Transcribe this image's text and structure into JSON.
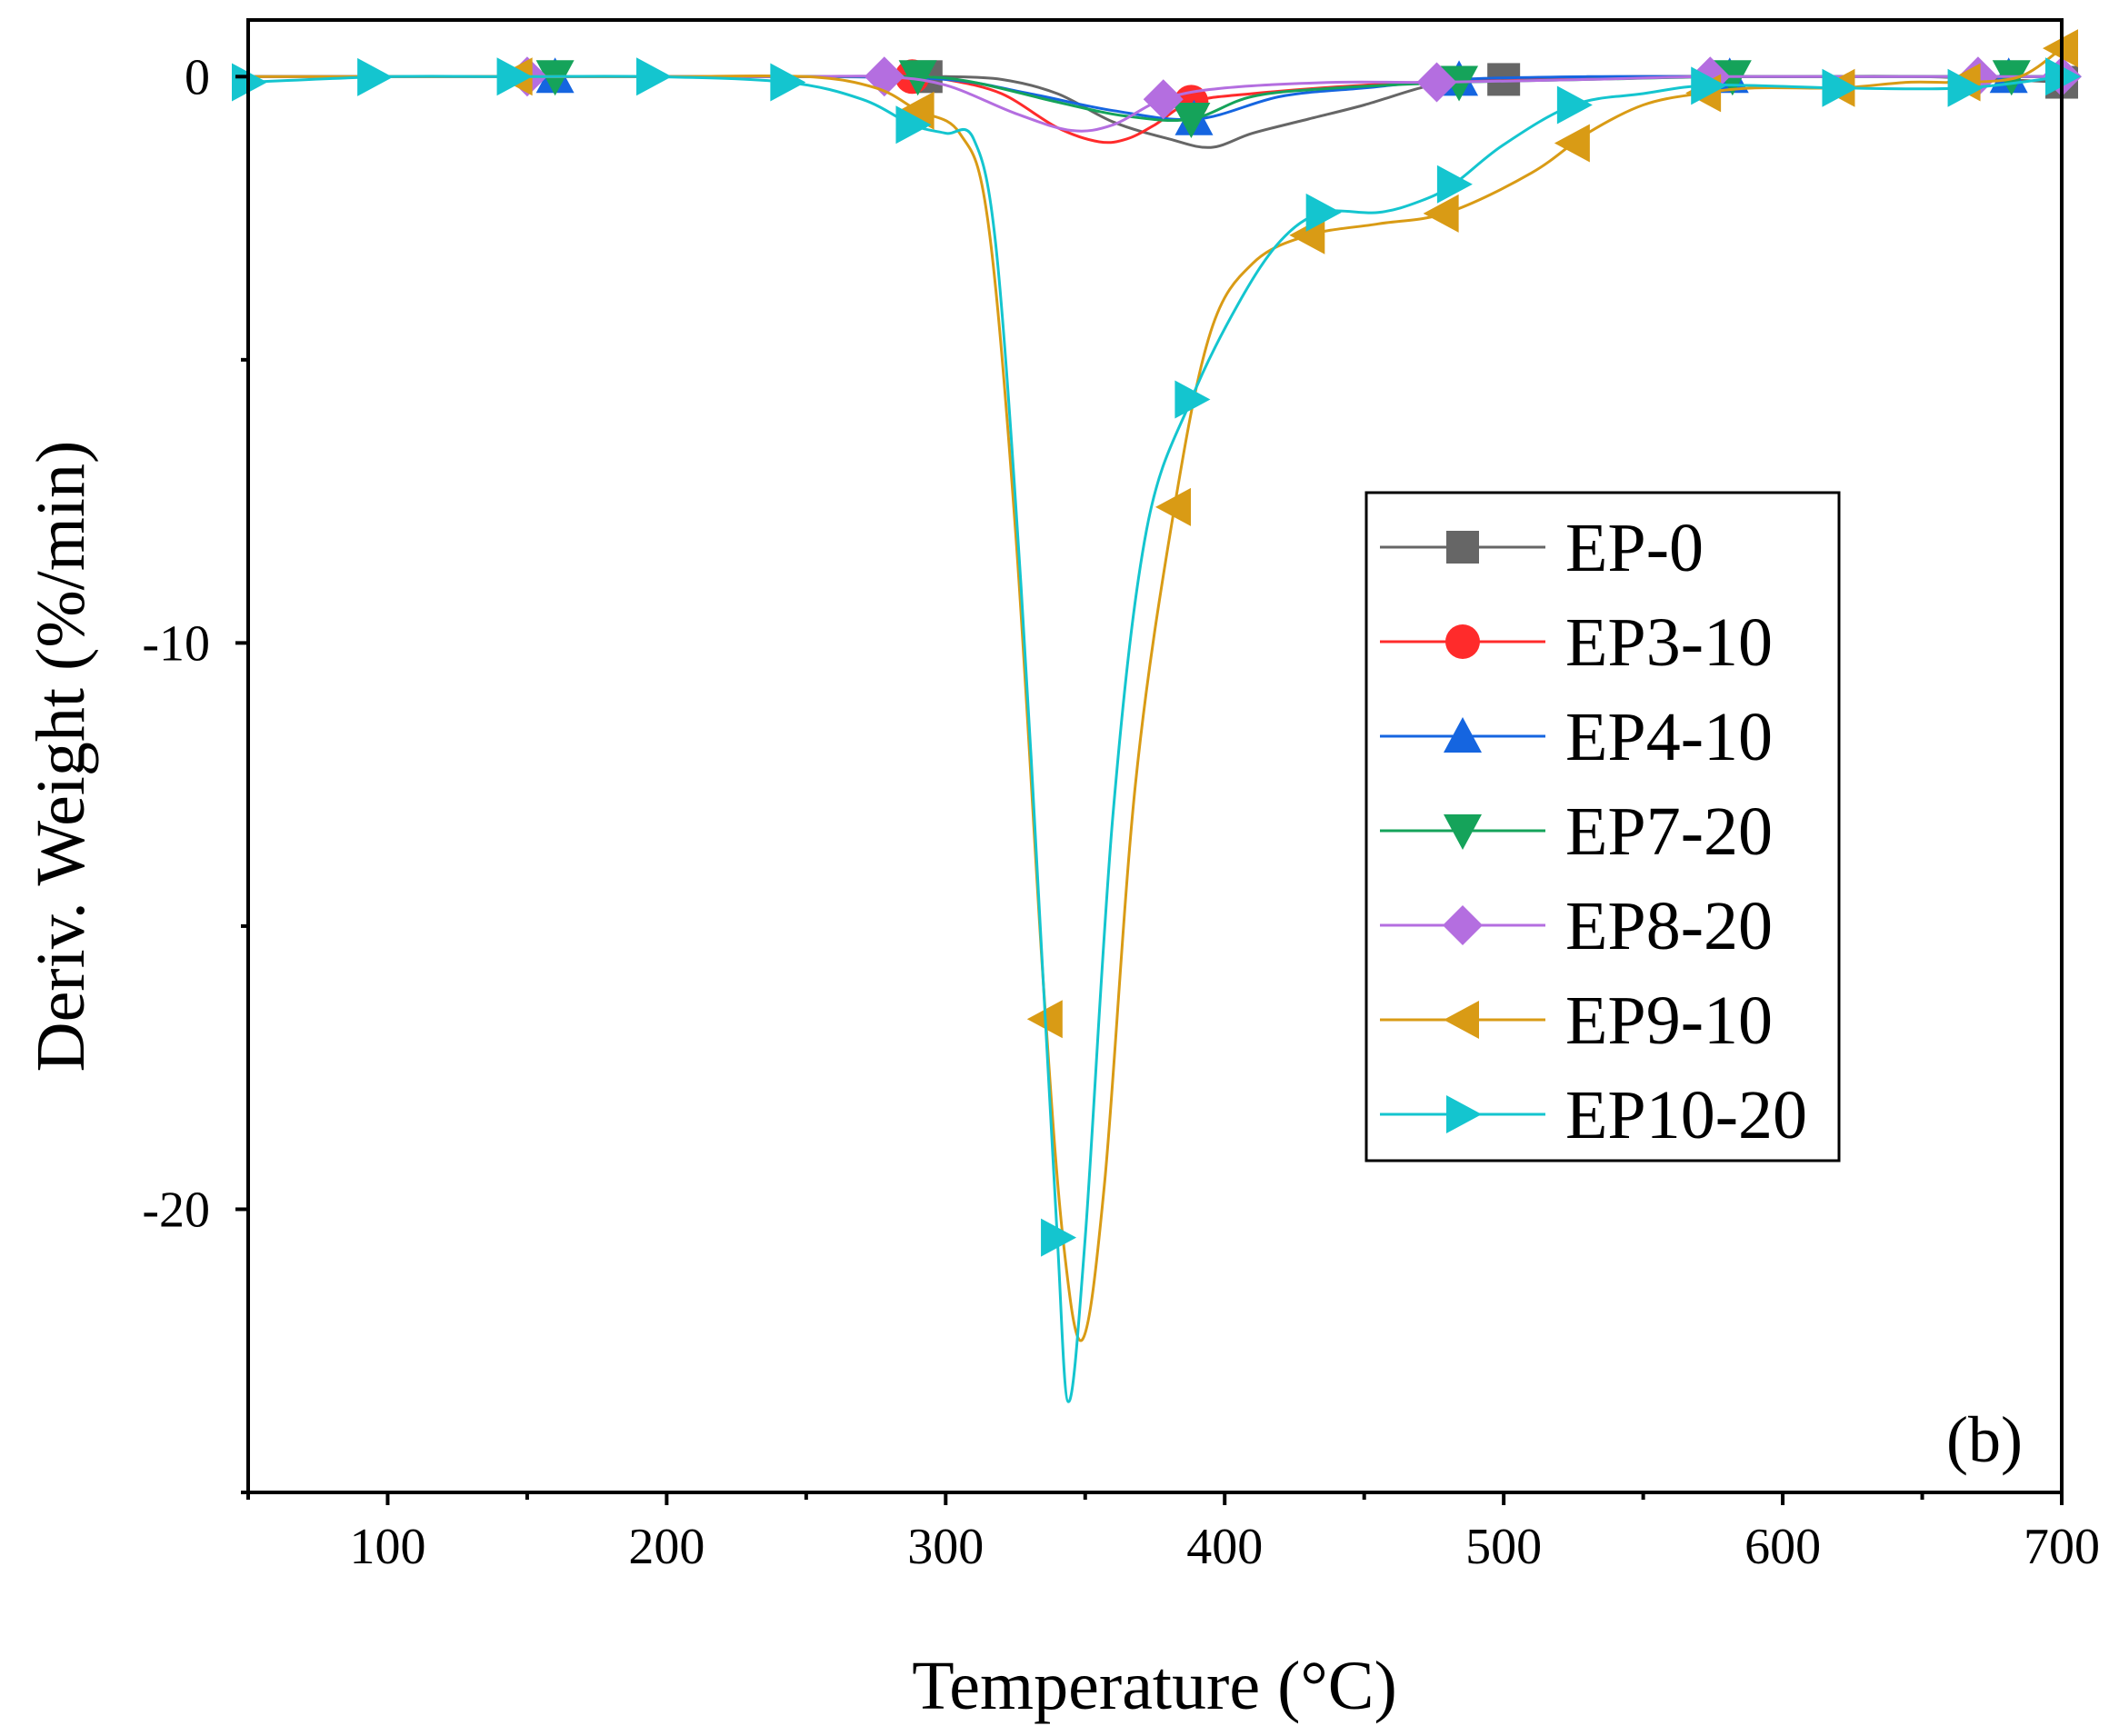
{
  "chart_data": {
    "type": "line",
    "xlabel": "Temperature (°C)",
    "ylabel": "Deriv. Weight (%/min)",
    "panel_label": "(b)",
    "xlim": [
      50,
      700
    ],
    "ylim": [
      -25,
      1.0
    ],
    "x_ticks": [
      100,
      200,
      300,
      400,
      500,
      600,
      700
    ],
    "x_minor_ticks": [
      50,
      150,
      250,
      350,
      450,
      550,
      650
    ],
    "y_ticks": [
      0,
      -10,
      -20
    ],
    "y_minor_ticks": [
      -5,
      -15,
      -25
    ],
    "legend_position": "center-right",
    "series": [
      {
        "name": "EP-0",
        "color": "#666666",
        "marker": "square",
        "points": [
          [
            50,
            0
          ],
          [
            100,
            0
          ],
          [
            150,
            0
          ],
          [
            200,
            0
          ],
          [
            250,
            0
          ],
          [
            290,
            0
          ],
          [
            300,
            0
          ],
          [
            320,
            -0.05
          ],
          [
            340,
            -0.3
          ],
          [
            360,
            -0.8
          ],
          [
            380,
            -1.1
          ],
          [
            395,
            -1.25
          ],
          [
            410,
            -1.0
          ],
          [
            430,
            -0.75
          ],
          [
            450,
            -0.5
          ],
          [
            470,
            -0.2
          ],
          [
            485,
            -0.05
          ],
          [
            500,
            -0.05
          ],
          [
            550,
            0
          ],
          [
            600,
            0
          ],
          [
            650,
            0
          ],
          [
            700,
            -0.1
          ]
        ],
        "markers_x": [
          293,
          500,
          700
        ]
      },
      {
        "name": "EP3-10",
        "color": "#ff2b2b",
        "marker": "circle",
        "points": [
          [
            50,
            0
          ],
          [
            100,
            0
          ],
          [
            150,
            0
          ],
          [
            200,
            0
          ],
          [
            250,
            0
          ],
          [
            288,
            0
          ],
          [
            300,
            -0.05
          ],
          [
            320,
            -0.3
          ],
          [
            340,
            -0.9
          ],
          [
            355,
            -1.15
          ],
          [
            365,
            -1.1
          ],
          [
            375,
            -0.85
          ],
          [
            388,
            -0.45
          ],
          [
            410,
            -0.3
          ],
          [
            450,
            -0.15
          ],
          [
            500,
            -0.05
          ],
          [
            550,
            0
          ],
          [
            600,
            0
          ],
          [
            650,
            0
          ],
          [
            700,
            0
          ]
        ],
        "markers_x": [
          288,
          388
        ]
      },
      {
        "name": "EP4-10",
        "color": "#1565e0",
        "marker": "triangle-up",
        "points": [
          [
            50,
            0
          ],
          [
            100,
            0
          ],
          [
            160,
            0
          ],
          [
            200,
            0
          ],
          [
            250,
            0
          ],
          [
            300,
            -0.05
          ],
          [
            330,
            -0.3
          ],
          [
            360,
            -0.6
          ],
          [
            390,
            -0.75
          ],
          [
            420,
            -0.35
          ],
          [
            450,
            -0.2
          ],
          [
            484,
            -0.05
          ],
          [
            530,
            0
          ],
          [
            580,
            0
          ],
          [
            640,
            0
          ],
          [
            681,
            0
          ],
          [
            700,
            0
          ]
        ],
        "markers_x": [
          160,
          389,
          484,
          581,
          681
        ]
      },
      {
        "name": "EP7-20",
        "color": "#15a35a",
        "marker": "triangle-down",
        "points": [
          [
            50,
            0
          ],
          [
            100,
            0
          ],
          [
            160,
            0
          ],
          [
            200,
            0
          ],
          [
            250,
            0
          ],
          [
            290,
            0
          ],
          [
            310,
            -0.1
          ],
          [
            340,
            -0.45
          ],
          [
            365,
            -0.7
          ],
          [
            388,
            -0.75
          ],
          [
            410,
            -0.35
          ],
          [
            440,
            -0.2
          ],
          [
            484,
            -0.1
          ],
          [
            530,
            -0.05
          ],
          [
            582,
            0
          ],
          [
            640,
            0
          ],
          [
            682,
            0
          ],
          [
            700,
            0
          ]
        ],
        "markers_x": [
          160,
          290,
          388,
          484,
          582,
          682
        ]
      },
      {
        "name": "EP8-20",
        "color": "#b46ee0",
        "marker": "diamond",
        "points": [
          [
            50,
            0
          ],
          [
            100,
            0
          ],
          [
            150,
            0
          ],
          [
            200,
            0
          ],
          [
            250,
            0
          ],
          [
            278,
            0
          ],
          [
            300,
            -0.15
          ],
          [
            325,
            -0.65
          ],
          [
            345,
            -0.95
          ],
          [
            360,
            -0.85
          ],
          [
            378,
            -0.4
          ],
          [
            400,
            -0.2
          ],
          [
            440,
            -0.1
          ],
          [
            476,
            -0.1
          ],
          [
            530,
            -0.05
          ],
          [
            574,
            0
          ],
          [
            630,
            0
          ],
          [
            670,
            0
          ],
          [
            700,
            0
          ]
        ],
        "markers_x": [
          150,
          278,
          378,
          476,
          574,
          670,
          700
        ]
      },
      {
        "name": "EP9-10",
        "color": "#d99b15",
        "marker": "triangle-left",
        "points": [
          [
            50,
            0
          ],
          [
            100,
            0
          ],
          [
            146,
            0
          ],
          [
            200,
            0
          ],
          [
            250,
            0
          ],
          [
            275,
            -0.2
          ],
          [
            290,
            -0.6
          ],
          [
            305,
            -1.0
          ],
          [
            315,
            -2.5
          ],
          [
            325,
            -8.0
          ],
          [
            335,
            -16.0
          ],
          [
            342,
            -20.5
          ],
          [
            349,
            -22.3
          ],
          [
            357,
            -19.5
          ],
          [
            368,
            -12.5
          ],
          [
            382,
            -7.6
          ],
          [
            395,
            -4.5
          ],
          [
            410,
            -3.3
          ],
          [
            430,
            -2.8
          ],
          [
            455,
            -2.6
          ],
          [
            480,
            -2.4
          ],
          [
            510,
            -1.7
          ],
          [
            530,
            -1.0
          ],
          [
            550,
            -0.5
          ],
          [
            570,
            -0.3
          ],
          [
            590,
            -0.2
          ],
          [
            620,
            -0.2
          ],
          [
            645,
            -0.1
          ],
          [
            665,
            -0.1
          ],
          [
            685,
            0
          ],
          [
            700,
            0.5
          ]
        ],
        "markers_x": [
          146,
          290,
          336,
          382,
          430,
          478,
          525,
          572,
          620,
          665,
          700
        ]
      },
      {
        "name": "EP10-20",
        "color": "#14c5cf",
        "marker": "triangle-right",
        "points": [
          [
            50,
            -0.1
          ],
          [
            100,
            0
          ],
          [
            145,
            0
          ],
          [
            195,
            0
          ],
          [
            243,
            -0.1
          ],
          [
            270,
            -0.4
          ],
          [
            288,
            -0.85
          ],
          [
            300,
            -1.0
          ],
          [
            310,
            -1.1
          ],
          [
            318,
            -3.0
          ],
          [
            327,
            -9.0
          ],
          [
            335,
            -16.0
          ],
          [
            340,
            -20.5
          ],
          [
            344,
            -23.4
          ],
          [
            350,
            -20.5
          ],
          [
            360,
            -13.0
          ],
          [
            372,
            -8.0
          ],
          [
            388,
            -5.7
          ],
          [
            405,
            -4.0
          ],
          [
            420,
            -2.9
          ],
          [
            435,
            -2.4
          ],
          [
            455,
            -2.4
          ],
          [
            470,
            -2.2
          ],
          [
            482,
            -1.9
          ],
          [
            500,
            -1.2
          ],
          [
            525,
            -0.5
          ],
          [
            550,
            -0.3
          ],
          [
            575,
            -0.15
          ],
          [
            620,
            -0.2
          ],
          [
            665,
            -0.2
          ],
          [
            700,
            0
          ]
        ],
        "markers_x": [
          50,
          95,
          145,
          195,
          243,
          288,
          340,
          388,
          435,
          482,
          525,
          573,
          620,
          665,
          700
        ]
      }
    ]
  }
}
